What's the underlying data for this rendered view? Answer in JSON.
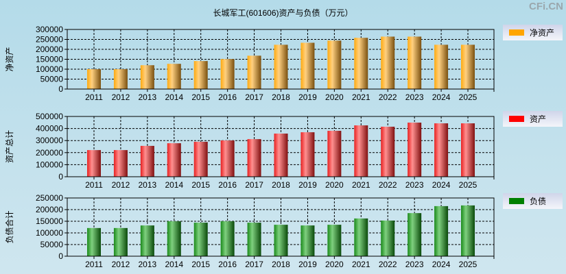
{
  "title": "长城军工(601606)资产与负债（万元）",
  "watermark": "CFi.CN",
  "chart_data": [
    {
      "type": "bar",
      "ylabel": "净资产",
      "legend": "净资产",
      "color": "#ffa500",
      "categories": [
        "2011",
        "2012",
        "2013",
        "2014",
        "2015",
        "2016",
        "2017",
        "2018",
        "2019",
        "2020",
        "2021",
        "2022",
        "2023",
        "2024",
        "2025"
      ],
      "values": [
        100000,
        100000,
        120000,
        127000,
        141000,
        151000,
        168000,
        223000,
        233000,
        244000,
        258000,
        264000,
        264000,
        223000,
        223000
      ],
      "ylim": [
        0,
        300000
      ],
      "yticks": [
        0,
        50000,
        100000,
        150000,
        200000,
        250000,
        300000
      ],
      "grid": true,
      "legend_position": "right"
    },
    {
      "type": "bar",
      "ylabel": "资产总计",
      "legend": "资产",
      "color": "#ff0000",
      "categories": [
        "2011",
        "2012",
        "2013",
        "2014",
        "2015",
        "2016",
        "2017",
        "2018",
        "2019",
        "2020",
        "2021",
        "2022",
        "2023",
        "2024",
        "2025"
      ],
      "values": [
        221000,
        221000,
        256000,
        278000,
        290000,
        301000,
        312000,
        358000,
        369000,
        381000,
        426000,
        415000,
        449000,
        443000,
        443000
      ],
      "ylim": [
        0,
        500000
      ],
      "yticks": [
        0,
        100000,
        200000,
        300000,
        400000,
        500000
      ],
      "grid": true,
      "legend_position": "right"
    },
    {
      "type": "bar",
      "ylabel": "负债合计",
      "legend": "负债",
      "color": "#008000",
      "categories": [
        "2011",
        "2012",
        "2013",
        "2014",
        "2015",
        "2016",
        "2017",
        "2018",
        "2019",
        "2020",
        "2021",
        "2022",
        "2023",
        "2024",
        "2025"
      ],
      "values": [
        121000,
        121000,
        132000,
        150000,
        144000,
        150000,
        144000,
        135000,
        132000,
        135000,
        162000,
        153000,
        185000,
        215000,
        218000
      ],
      "ylim": [
        0,
        250000
      ],
      "yticks": [
        0,
        50000,
        100000,
        150000,
        200000,
        250000
      ],
      "grid": true,
      "legend_position": "right"
    }
  ]
}
